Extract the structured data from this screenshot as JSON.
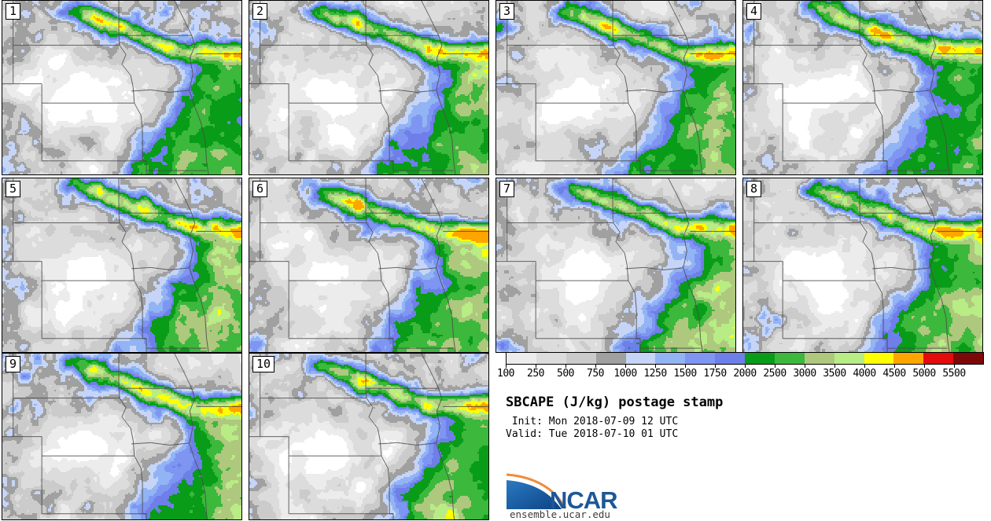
{
  "panels": [
    {
      "label": "1"
    },
    {
      "label": "2"
    },
    {
      "label": "3"
    },
    {
      "label": "4"
    },
    {
      "label": "5"
    },
    {
      "label": "6"
    },
    {
      "label": "7"
    },
    {
      "label": "8"
    },
    {
      "label": "9"
    },
    {
      "label": "10"
    }
  ],
  "colorbar": {
    "tick_labels": [
      "100",
      "250",
      "500",
      "750",
      "1000",
      "1250",
      "1500",
      "1750",
      "2000",
      "2500",
      "3000",
      "3500",
      "4000",
      "4500",
      "5000",
      "5500"
    ],
    "segment_colors": [
      "#ececec",
      "#dcdcdc",
      "#cbcbcb",
      "#a0a0a0",
      "#c6d5f7",
      "#92b4f4",
      "#7e96f2",
      "#6e7fe9",
      "#089c18",
      "#3cb83c",
      "#aec87e",
      "#b8ec84",
      "#ffff00",
      "#ffa500",
      "#e30b0b",
      "#7c0808"
    ],
    "below_min_color": "#ffffff",
    "border_color": "#000000"
  },
  "info": {
    "title": "SBCAPE (J/kg) postage stamp",
    "init_line": " Init: Mon 2018-07-09 12 UTC",
    "valid_line": "Valid: Tue 2018-07-10 01 UTC"
  },
  "logo": {
    "text": "NCAR",
    "url": "ensemble.ucar.edu",
    "blue": "#1d5796",
    "orange": "#f08c3c",
    "wedge_light": "#2a7ac2",
    "wedge_dark": "#0d4284"
  },
  "map": {
    "state_border_color": "#4a4a4a",
    "panel_border_color": "#000000"
  }
}
